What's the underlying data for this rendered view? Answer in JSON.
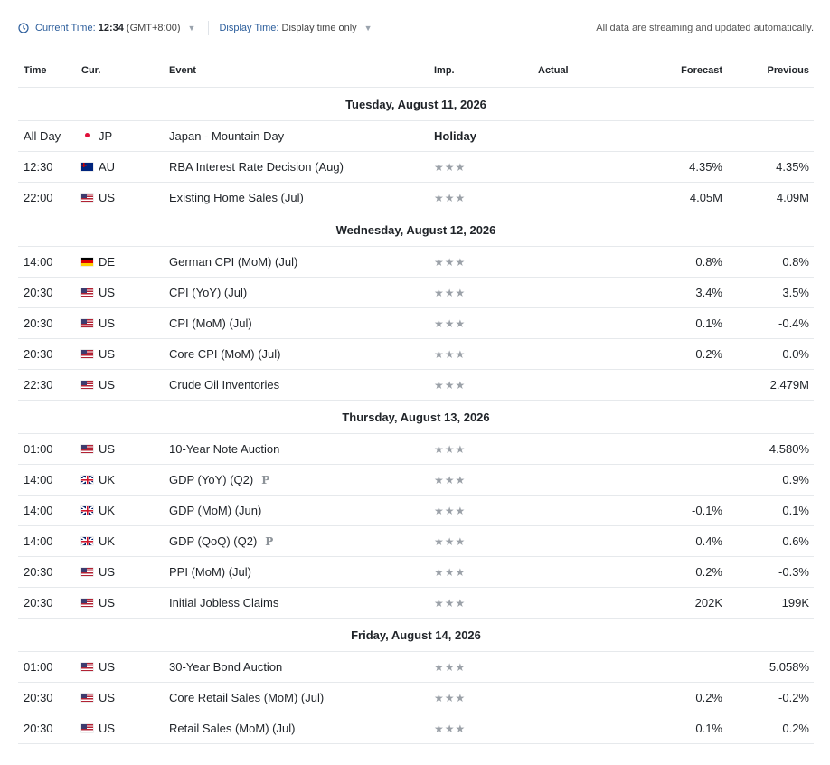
{
  "header": {
    "current_time_label": "Current Time:",
    "current_time_value": "12:34",
    "timezone": "(GMT+8:00)",
    "display_time_label": "Display Time:",
    "display_time_value": "Display time only",
    "status_text": "All data are streaming and updated automatically."
  },
  "columns": {
    "time": "Time",
    "currency": "Cur.",
    "event": "Event",
    "importance": "Imp.",
    "actual": "Actual",
    "forecast": "Forecast",
    "previous": "Previous"
  },
  "days": [
    {
      "date": "Tuesday, August 11, 2026",
      "events": [
        {
          "time": "All Day",
          "flag": "jp-dot",
          "currency": "JP",
          "event": "Japan - Mountain Day",
          "importance": "Holiday",
          "actual": "",
          "forecast": "",
          "previous": "",
          "preliminary": ""
        },
        {
          "time": "12:30",
          "flag": "au-flag",
          "currency": "AU",
          "event": "RBA Interest Rate Decision  (Aug)",
          "importance": "★★★",
          "actual": "",
          "forecast": "4.35%",
          "previous": "4.35%",
          "preliminary": ""
        },
        {
          "time": "22:00",
          "flag": "us-flag",
          "currency": "US",
          "event": "Existing Home Sales  (Jul)",
          "importance": "★★★",
          "actual": "",
          "forecast": "4.05M",
          "previous": "4.09M",
          "preliminary": ""
        }
      ]
    },
    {
      "date": "Wednesday, August 12, 2026",
      "events": [
        {
          "time": "14:00",
          "flag": "de-flag",
          "currency": "DE",
          "event": "German CPI (MoM) (Jul)",
          "importance": "★★★",
          "actual": "",
          "forecast": "0.8%",
          "previous": "0.8%",
          "preliminary": ""
        },
        {
          "time": "20:30",
          "flag": "us-flag",
          "currency": "US",
          "event": "CPI (YoY) (Jul)",
          "importance": "★★★",
          "actual": "",
          "forecast": "3.4%",
          "previous": "3.5%",
          "preliminary": ""
        },
        {
          "time": "20:30",
          "flag": "us-flag",
          "currency": "US",
          "event": "CPI (MoM) (Jul)",
          "importance": "★★★",
          "actual": "",
          "forecast": "0.1%",
          "previous": "-0.4%",
          "preliminary": ""
        },
        {
          "time": "20:30",
          "flag": "us-flag",
          "currency": "US",
          "event": "Core CPI (MoM) (Jul)",
          "importance": "★★★",
          "actual": "",
          "forecast": "0.2%",
          "previous": "0.0%",
          "preliminary": ""
        },
        {
          "time": "22:30",
          "flag": "us-flag",
          "currency": "US",
          "event": "Crude Oil Inventories",
          "importance": "★★★",
          "actual": "",
          "forecast": "",
          "previous": "2.479M",
          "preliminary": ""
        }
      ]
    },
    {
      "date": "Thursday, August 13, 2026",
      "events": [
        {
          "time": "01:00",
          "flag": "us-flag",
          "currency": "US",
          "event": "10-Year Note Auction",
          "importance": "★★★",
          "actual": "",
          "forecast": "",
          "previous": "4.580%",
          "preliminary": ""
        },
        {
          "time": "14:00",
          "flag": "uk-flag",
          "currency": "UK",
          "event": "GDP (YoY) (Q2)",
          "importance": "★★★",
          "actual": "",
          "forecast": "",
          "previous": "0.9%",
          "preliminary": "P"
        },
        {
          "time": "14:00",
          "flag": "uk-flag",
          "currency": "UK",
          "event": "GDP (MoM) (Jun)",
          "importance": "★★★",
          "actual": "",
          "forecast": "-0.1%",
          "previous": "0.1%",
          "preliminary": ""
        },
        {
          "time": "14:00",
          "flag": "uk-flag",
          "currency": "UK",
          "event": "GDP (QoQ) (Q2)",
          "importance": "★★★",
          "actual": "",
          "forecast": "0.4%",
          "previous": "0.6%",
          "preliminary": "P"
        },
        {
          "time": "20:30",
          "flag": "us-flag",
          "currency": "US",
          "event": "PPI (MoM) (Jul)",
          "importance": "★★★",
          "actual": "",
          "forecast": "0.2%",
          "previous": "-0.3%",
          "preliminary": ""
        },
        {
          "time": "20:30",
          "flag": "us-flag",
          "currency": "US",
          "event": "Initial Jobless Claims",
          "importance": "★★★",
          "actual": "",
          "forecast": "202K",
          "previous": "199K",
          "preliminary": ""
        }
      ]
    },
    {
      "date": "Friday, August 14, 2026",
      "events": [
        {
          "time": "01:00",
          "flag": "us-flag",
          "currency": "US",
          "event": "30-Year Bond Auction",
          "importance": "★★★",
          "actual": "",
          "forecast": "",
          "previous": "5.058%",
          "preliminary": ""
        },
        {
          "time": "20:30",
          "flag": "us-flag",
          "currency": "US",
          "event": "Core Retail Sales (MoM) (Jul)",
          "importance": "★★★",
          "actual": "",
          "forecast": "0.2%",
          "previous": "-0.2%",
          "preliminary": ""
        },
        {
          "time": "20:30",
          "flag": "us-flag",
          "currency": "US",
          "event": "Retail Sales (MoM) (Jul)",
          "importance": "★★★",
          "actual": "",
          "forecast": "0.1%",
          "previous": "0.2%",
          "preliminary": ""
        }
      ]
    }
  ],
  "colors": {
    "accent": "#2b5d9b",
    "star": "#9ba1a8",
    "border": "#e6e9ec",
    "jp_dot": "#e0103a"
  }
}
